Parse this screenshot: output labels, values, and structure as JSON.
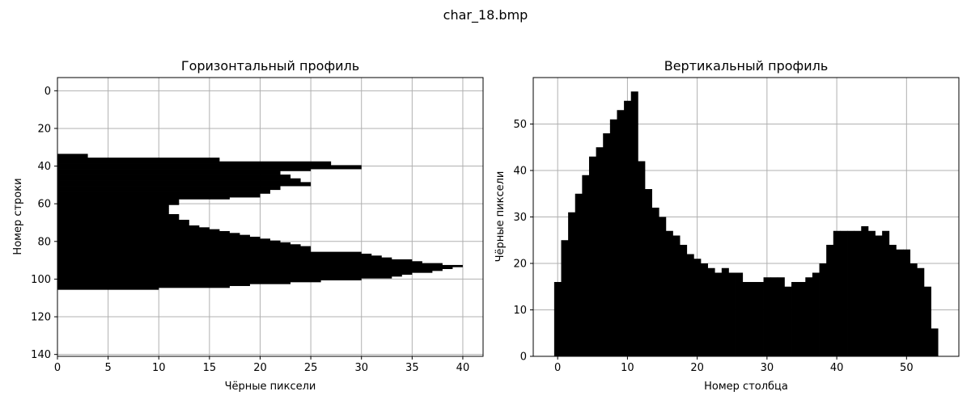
{
  "figure_title": "char_18.bmp",
  "chart_data": [
    {
      "type": "bar",
      "orientation": "horizontal",
      "title": "Горизонтальный профиль",
      "xlabel": "Чёрные пиксели",
      "ylabel": "Номер строки",
      "xlim": [
        0,
        42
      ],
      "ylim": [
        141,
        -7
      ],
      "y_inverted": true,
      "grid": true,
      "xticks": [
        0,
        5,
        10,
        15,
        20,
        25,
        30,
        35,
        40
      ],
      "yticks": [
        0,
        20,
        40,
        60,
        80,
        100,
        120,
        140
      ],
      "rows": [
        34,
        35,
        36,
        37,
        38,
        39,
        40,
        41,
        42,
        43,
        44,
        45,
        46,
        47,
        48,
        49,
        50,
        51,
        52,
        53,
        54,
        55,
        56,
        57,
        58,
        59,
        60,
        61,
        62,
        63,
        64,
        65,
        66,
        67,
        68,
        69,
        70,
        71,
        72,
        73,
        74,
        75,
        76,
        77,
        78,
        79,
        80,
        81,
        82,
        83,
        84,
        85,
        86,
        87,
        88,
        89,
        90,
        91,
        92,
        93,
        94,
        95,
        96,
        97,
        98,
        99,
        100,
        101,
        102,
        103,
        104,
        105
      ],
      "values": [
        3,
        3,
        16,
        16,
        27,
        27,
        30,
        30,
        25,
        22,
        22,
        23,
        23,
        24,
        24,
        25,
        25,
        22,
        22,
        21,
        21,
        20,
        20,
        17,
        12,
        12,
        12,
        11,
        11,
        11,
        11,
        11,
        12,
        12,
        12,
        13,
        13,
        13,
        14,
        15,
        16,
        17,
        18,
        19,
        20,
        21,
        22,
        23,
        24,
        25,
        25,
        25,
        30,
        31,
        32,
        33,
        35,
        36,
        38,
        40,
        39,
        38,
        37,
        35,
        34,
        33,
        30,
        26,
        23,
        19,
        17,
        10
      ]
    },
    {
      "type": "bar",
      "title": "Вертикальный профиль",
      "xlabel": "Номер столбца",
      "ylabel": "Чёрные пиксели",
      "xlim": [
        -3.5,
        57.5
      ],
      "ylim": [
        0,
        60
      ],
      "grid": true,
      "xticks": [
        0,
        10,
        20,
        30,
        40,
        50
      ],
      "yticks": [
        0,
        10,
        20,
        30,
        40,
        50
      ],
      "x": [
        0,
        1,
        2,
        3,
        4,
        5,
        6,
        7,
        8,
        9,
        10,
        11,
        12,
        13,
        14,
        15,
        16,
        17,
        18,
        19,
        20,
        21,
        22,
        23,
        24,
        25,
        26,
        27,
        28,
        29,
        30,
        31,
        32,
        33,
        34,
        35,
        36,
        37,
        38,
        39,
        40,
        41,
        42,
        43,
        44,
        45,
        46,
        47,
        48,
        49,
        50,
        51,
        52,
        53,
        54
      ],
      "values": [
        16,
        25,
        31,
        35,
        39,
        43,
        45,
        48,
        51,
        53,
        55,
        57,
        42,
        36,
        32,
        30,
        27,
        26,
        24,
        22,
        21,
        20,
        19,
        18,
        19,
        18,
        18,
        16,
        16,
        16,
        17,
        17,
        17,
        15,
        16,
        16,
        17,
        18,
        20,
        24,
        27,
        27,
        27,
        27,
        28,
        27,
        26,
        27,
        24,
        23,
        23,
        20,
        19,
        15,
        6
      ]
    }
  ]
}
